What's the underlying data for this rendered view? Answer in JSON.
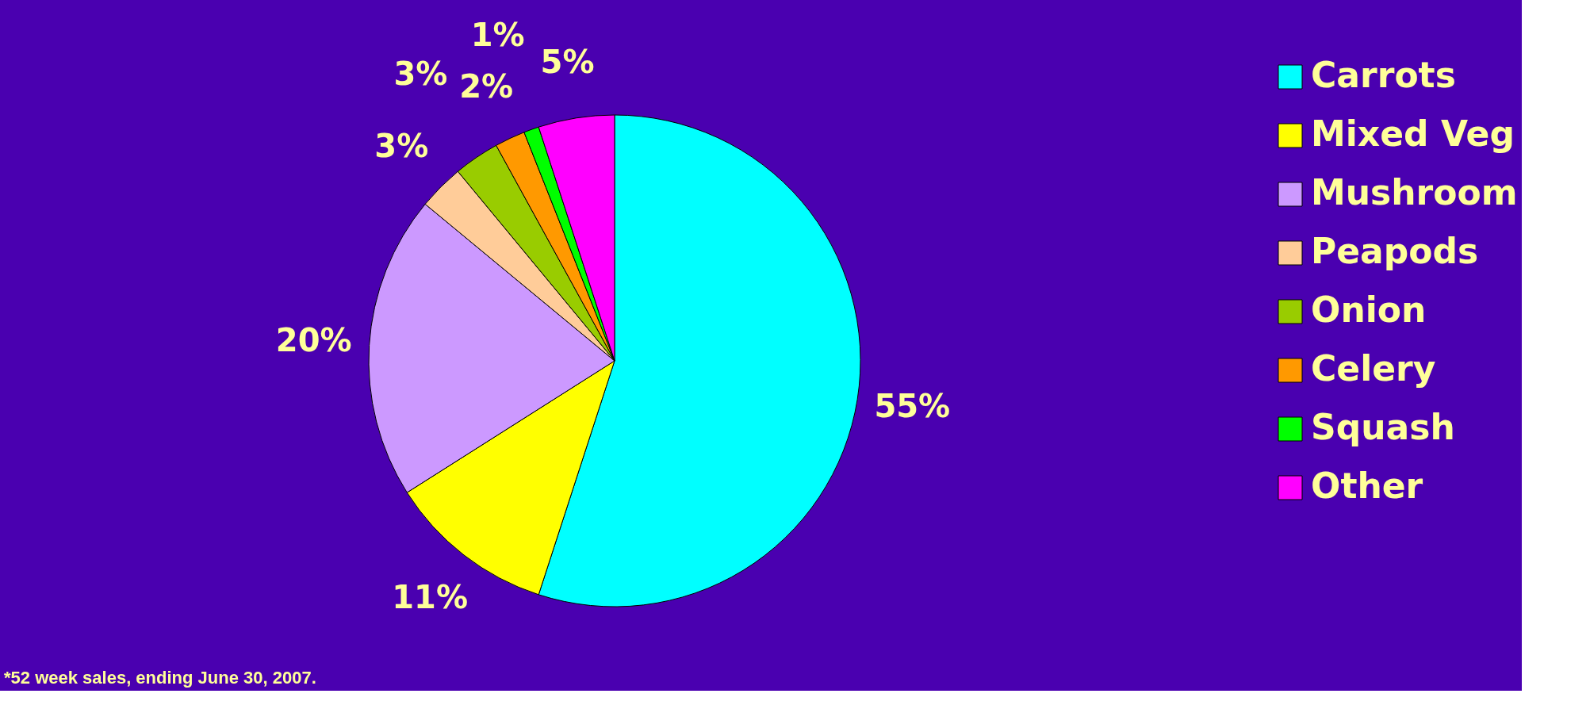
{
  "chart_data": {
    "type": "pie",
    "categories": [
      "Carrots",
      "Mixed Veg",
      "Mushroom",
      "Peapods",
      "Onion",
      "Celery",
      "Squash",
      "Other"
    ],
    "values": [
      55,
      11,
      20,
      3,
      3,
      2,
      1,
      5
    ],
    "value_labels": [
      "55%",
      "11%",
      "20%",
      "3%",
      "3%",
      "2%",
      "1%",
      "5%"
    ],
    "colors": [
      "#00ffff",
      "#ffff00",
      "#cc99ff",
      "#ffcc99",
      "#99cc00",
      "#ff9900",
      "#00ff00",
      "#ff00ff"
    ],
    "legend": "right",
    "annotations": [
      "*52 week sales, ending June 30, 2007."
    ]
  }
}
